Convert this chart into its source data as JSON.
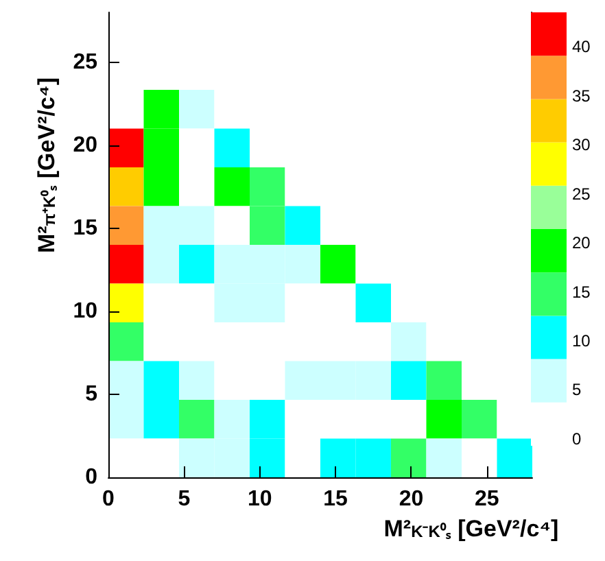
{
  "chart_data": {
    "type": "heatmap",
    "xlabel": "M²$_{K⁻K⁰ₛ}$ [GeV²/c⁴]",
    "ylabel": "M²$_{π⁺K⁰ₛ}$ [GeV²/c⁴]",
    "xlim": [
      0,
      28
    ],
    "ylim": [
      0,
      28
    ],
    "xticks": [
      0,
      5,
      10,
      15,
      20,
      25
    ],
    "yticks": [
      0,
      5,
      10,
      15,
      20,
      25
    ],
    "clim": [
      -0.7,
      43.5
    ],
    "cticks": [
      0,
      5,
      10,
      15,
      20,
      25,
      30,
      35,
      40
    ],
    "cells": [
      [
        0,
        0,
        0,
        0,
        0,
        0,
        0,
        0,
        0,
        0,
        0,
        0
      ],
      [
        0,
        0,
        0,
        0,
        0,
        0,
        0,
        0,
        0,
        0,
        0,
        0
      ],
      [
        0,
        18,
        4,
        0,
        0,
        0,
        0,
        0,
        0,
        0,
        0,
        0
      ],
      [
        41,
        18,
        0,
        9,
        0,
        0,
        0,
        0,
        0,
        0,
        0,
        0
      ],
      [
        32,
        18,
        0,
        18,
        14,
        0,
        0,
        0,
        0,
        0,
        0,
        0
      ],
      [
        36,
        4,
        4,
        0,
        14,
        9,
        0,
        0,
        0,
        0,
        0,
        0
      ],
      [
        41,
        4,
        9,
        4,
        4,
        4,
        18,
        0,
        0,
        0,
        0,
        0
      ],
      [
        27,
        0,
        0,
        4,
        4,
        0,
        0,
        9,
        0,
        0,
        0,
        0
      ],
      [
        14,
        0,
        0,
        0,
        0,
        0,
        0,
        0,
        4,
        0,
        0,
        0
      ],
      [
        4,
        9,
        4,
        0,
        0,
        4,
        4,
        4,
        9,
        14,
        0,
        0
      ],
      [
        4,
        9,
        14,
        4,
        9,
        0,
        0,
        0,
        0,
        18,
        14,
        0
      ],
      [
        0,
        0,
        4,
        4,
        9,
        0,
        9,
        9,
        14,
        4,
        0,
        9
      ]
    ]
  }
}
